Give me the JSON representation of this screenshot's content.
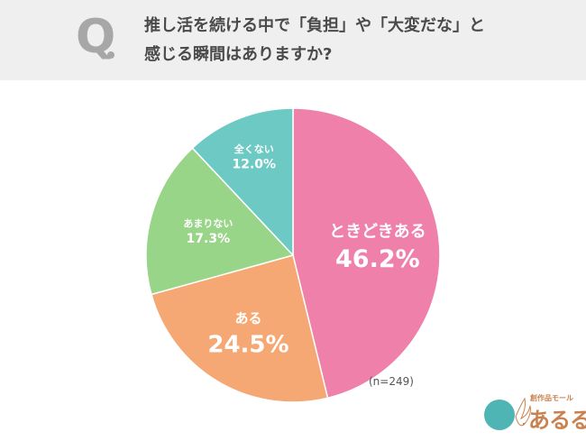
{
  "question": {
    "mark": "Q",
    "line1": "推し活を続ける中で「負担」や「大変だな」と",
    "line2": "感じる瞬間はありますか?"
  },
  "chart_data": {
    "type": "pie",
    "title": "",
    "categories": [
      "ときどきある",
      "ある",
      "あまりない",
      "全くない"
    ],
    "values": [
      46.2,
      24.5,
      17.3,
      12.0
    ],
    "labels": [
      "46.2%",
      "24.5%",
      "17.3%",
      "12.0%"
    ],
    "colors": [
      "#ee80aa",
      "#f5a874",
      "#99d588",
      "#6dc9c4"
    ],
    "start": "12 o'clock, clockwise"
  },
  "note": "(n=249)",
  "logo": {
    "tagline": "創作品モール",
    "word": "あるる"
  }
}
